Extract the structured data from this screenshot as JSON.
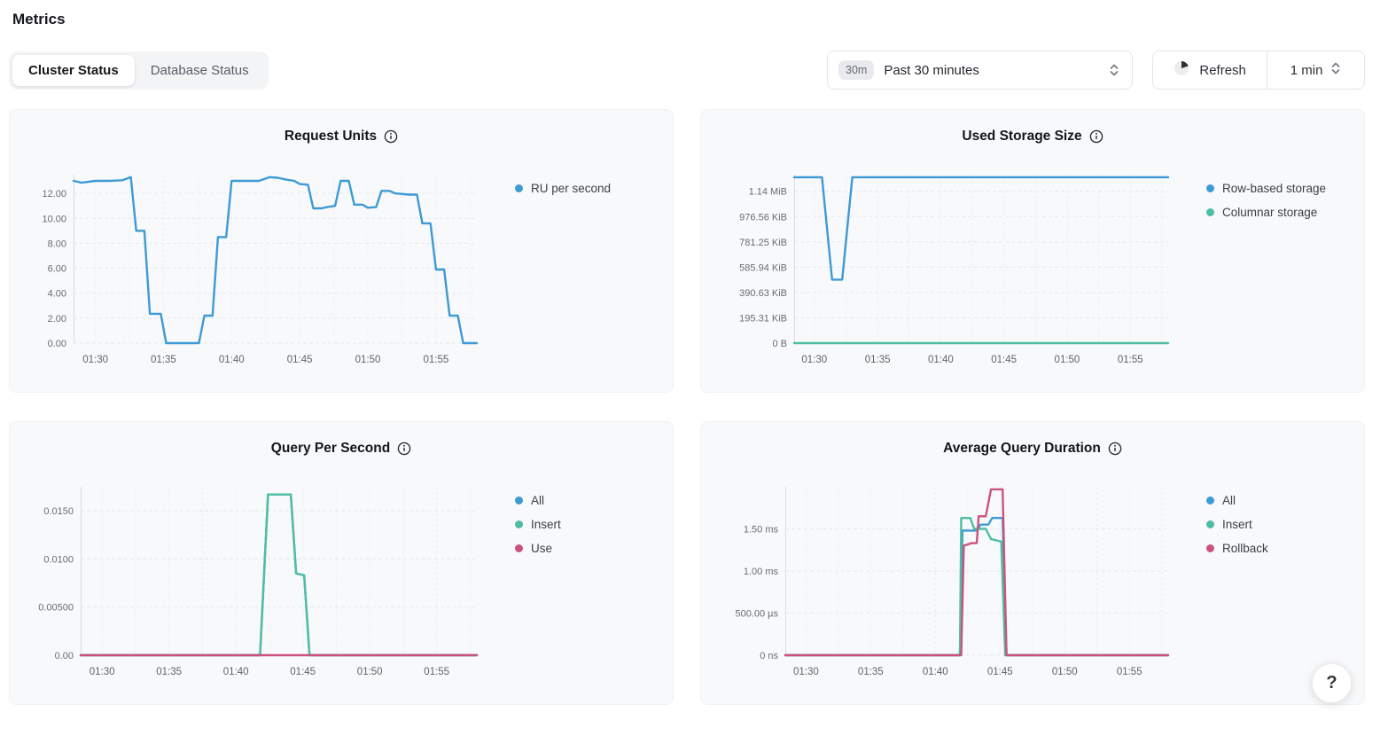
{
  "page": {
    "title": "Metrics"
  },
  "tabs": [
    {
      "label": "Cluster Status",
      "active": true
    },
    {
      "label": "Database Status",
      "active": false
    }
  ],
  "time_range_select": {
    "badge": "30m",
    "value": "Past 30 minutes"
  },
  "refresh_control": {
    "button_label": "Refresh",
    "interval_value": "1 min"
  },
  "help_button": {
    "label": "?"
  },
  "colors": {
    "accent_blue": "#3d9ad5",
    "accent_green": "#4fbda3",
    "accent_pink": "#cc527d",
    "card_bg": "#f8f9fa"
  },
  "chart_data": [
    {
      "type": "line",
      "title": "Request Units",
      "legend_position": "right",
      "grid": true,
      "x_range": [
        28.4,
        58
      ],
      "y_max": 13.5,
      "x_ticks": [
        {
          "label": "01:30",
          "v": 30
        },
        {
          "label": "01:35",
          "v": 35
        },
        {
          "label": "01:40",
          "v": 40
        },
        {
          "label": "01:45",
          "v": 45
        },
        {
          "label": "01:50",
          "v": 50
        },
        {
          "label": "01:55",
          "v": 55
        }
      ],
      "y_ticks": [
        {
          "label": "0.00",
          "v": 0
        },
        {
          "label": "2.00",
          "v": 2
        },
        {
          "label": "4.00",
          "v": 4
        },
        {
          "label": "6.00",
          "v": 6
        },
        {
          "label": "8.00",
          "v": 8
        },
        {
          "label": "10.00",
          "v": 10
        },
        {
          "label": "12.00",
          "v": 12
        }
      ],
      "series": [
        {
          "name": "RU per second",
          "color": "#3d9ad5",
          "points": [
            [
              28.4,
              13.0
            ],
            [
              29,
              12.85
            ],
            [
              30,
              13.0
            ],
            [
              31,
              13.0
            ],
            [
              32,
              13.05
            ],
            [
              32.6,
              13.3
            ],
            [
              33,
              9.0
            ],
            [
              33.6,
              9.0
            ],
            [
              34,
              2.35
            ],
            [
              34.8,
              2.35
            ],
            [
              35.2,
              0
            ],
            [
              37.6,
              0
            ],
            [
              38,
              2.2
            ],
            [
              38.6,
              2.2
            ],
            [
              39,
              8.5
            ],
            [
              39.6,
              8.5
            ],
            [
              40,
              13.0
            ],
            [
              41,
              13.0
            ],
            [
              42,
              13.0
            ],
            [
              42.8,
              13.3
            ],
            [
              43.4,
              13.25
            ],
            [
              44,
              13.1
            ],
            [
              44.6,
              13.0
            ],
            [
              45,
              12.75
            ],
            [
              45.6,
              12.7
            ],
            [
              46,
              10.8
            ],
            [
              46.6,
              10.8
            ],
            [
              47,
              10.9
            ],
            [
              47.6,
              11.0
            ],
            [
              48,
              13.0
            ],
            [
              48.6,
              13.0
            ],
            [
              49,
              11.1
            ],
            [
              49.6,
              11.1
            ],
            [
              50,
              10.85
            ],
            [
              50.6,
              10.9
            ],
            [
              51,
              12.2
            ],
            [
              51.6,
              12.2
            ],
            [
              52,
              12.0
            ],
            [
              53,
              11.9
            ],
            [
              53.6,
              11.9
            ],
            [
              54,
              9.6
            ],
            [
              54.6,
              9.6
            ],
            [
              55,
              5.9
            ],
            [
              55.6,
              5.9
            ],
            [
              56,
              2.2
            ],
            [
              56.6,
              2.2
            ],
            [
              57,
              0
            ],
            [
              58,
              0
            ]
          ]
        }
      ]
    },
    {
      "type": "line",
      "title": "Used Storage Size",
      "legend_position": "right",
      "grid": true,
      "x_range": [
        28.4,
        58
      ],
      "y_max": 1300,
      "y_unit": "KiB",
      "x_ticks": [
        {
          "label": "01:30",
          "v": 30
        },
        {
          "label": "01:35",
          "v": 35
        },
        {
          "label": "01:40",
          "v": 40
        },
        {
          "label": "01:45",
          "v": 45
        },
        {
          "label": "01:50",
          "v": 50
        },
        {
          "label": "01:55",
          "v": 55
        }
      ],
      "y_ticks": [
        {
          "label": "0 B",
          "v": 0
        },
        {
          "label": "195.31 KiB",
          "v": 195.31
        },
        {
          "label": "390.63 KiB",
          "v": 390.63
        },
        {
          "label": "585.94 KiB",
          "v": 585.94
        },
        {
          "label": "781.25 KiB",
          "v": 781.25
        },
        {
          "label": "976.56 KiB",
          "v": 976.56
        },
        {
          "label": "1.14 MiB",
          "v": 1171.86
        }
      ],
      "series": [
        {
          "name": "Row-based storage",
          "color": "#3d9ad5",
          "points": [
            [
              28.4,
              1280
            ],
            [
              30.6,
              1280
            ],
            [
              31.4,
              490
            ],
            [
              32.2,
              490
            ],
            [
              33,
              1280
            ],
            [
              58,
              1280
            ]
          ]
        },
        {
          "name": "Columnar storage",
          "color": "#4fbda3",
          "points": [
            [
              28.4,
              0
            ],
            [
              58,
              0
            ]
          ]
        }
      ]
    },
    {
      "type": "line",
      "title": "Query Per Second",
      "legend_position": "right",
      "grid": true,
      "x_range": [
        28.4,
        58
      ],
      "y_max": 0.0175,
      "x_ticks": [
        {
          "label": "01:30",
          "v": 30
        },
        {
          "label": "01:35",
          "v": 35
        },
        {
          "label": "01:40",
          "v": 40
        },
        {
          "label": "01:45",
          "v": 45
        },
        {
          "label": "01:50",
          "v": 50
        },
        {
          "label": "01:55",
          "v": 55
        }
      ],
      "y_ticks": [
        {
          "label": "0.00",
          "v": 0
        },
        {
          "label": "0.00500",
          "v": 0.005
        },
        {
          "label": "0.0100",
          "v": 0.01
        },
        {
          "label": "0.0150",
          "v": 0.015
        }
      ],
      "series": [
        {
          "name": "All",
          "color": "#3d9ad5",
          "points": [
            [
              28.4,
              0
            ],
            [
              41.8,
              0
            ],
            [
              42.4,
              0.0167
            ],
            [
              44.1,
              0.0167
            ],
            [
              44.5,
              0.0085
            ],
            [
              45.1,
              0.0083
            ],
            [
              45.5,
              0
            ],
            [
              58,
              0
            ]
          ]
        },
        {
          "name": "Insert",
          "color": "#4fbda3",
          "points": [
            [
              28.4,
              0
            ],
            [
              41.8,
              0
            ],
            [
              42.4,
              0.0167
            ],
            [
              44.1,
              0.0167
            ],
            [
              44.5,
              0.0085
            ],
            [
              45.1,
              0.0083
            ],
            [
              45.5,
              0
            ],
            [
              58,
              0
            ]
          ]
        },
        {
          "name": "Use",
          "color": "#cc527d",
          "points": [
            [
              28.4,
              0
            ],
            [
              58,
              0
            ]
          ]
        }
      ]
    },
    {
      "type": "line",
      "title": "Average Query Duration",
      "legend_position": "right",
      "grid": true,
      "x_range": [
        28.4,
        58
      ],
      "y_max": 2.0,
      "y_unit": "ms",
      "x_ticks": [
        {
          "label": "01:30",
          "v": 30
        },
        {
          "label": "01:35",
          "v": 35
        },
        {
          "label": "01:40",
          "v": 40
        },
        {
          "label": "01:45",
          "v": 45
        },
        {
          "label": "01:50",
          "v": 50
        },
        {
          "label": "01:55",
          "v": 55
        }
      ],
      "y_ticks": [
        {
          "label": "0 ns",
          "v": 0
        },
        {
          "label": "500.00 µs",
          "v": 0.5
        },
        {
          "label": "1.00 ms",
          "v": 1.0
        },
        {
          "label": "1.50 ms",
          "v": 1.5
        }
      ],
      "series": [
        {
          "name": "All",
          "color": "#3d9ad5",
          "points": [
            [
              28.4,
              0
            ],
            [
              41.9,
              0
            ],
            [
              42.1,
              1.48
            ],
            [
              43.2,
              1.48
            ],
            [
              43.5,
              1.55
            ],
            [
              44.1,
              1.55
            ],
            [
              44.4,
              1.63
            ],
            [
              45.2,
              1.63
            ],
            [
              45.5,
              0
            ],
            [
              58,
              0
            ]
          ]
        },
        {
          "name": "Insert",
          "color": "#4fbda3",
          "points": [
            [
              28.4,
              0
            ],
            [
              41.9,
              0
            ],
            [
              42.0,
              1.63
            ],
            [
              42.7,
              1.63
            ],
            [
              43.0,
              1.5
            ],
            [
              43.9,
              1.5
            ],
            [
              44.3,
              1.38
            ],
            [
              45.1,
              1.35
            ],
            [
              45.4,
              0
            ],
            [
              58,
              0
            ]
          ]
        },
        {
          "name": "Rollback",
          "color": "#cc527d",
          "points": [
            [
              28.4,
              0
            ],
            [
              42.0,
              0
            ],
            [
              42.2,
              1.3
            ],
            [
              42.8,
              1.33
            ],
            [
              43.2,
              1.33
            ],
            [
              43.35,
              1.65
            ],
            [
              43.9,
              1.65
            ],
            [
              44.3,
              1.97
            ],
            [
              45.2,
              1.97
            ],
            [
              45.5,
              0
            ],
            [
              58,
              0
            ]
          ]
        }
      ]
    }
  ]
}
